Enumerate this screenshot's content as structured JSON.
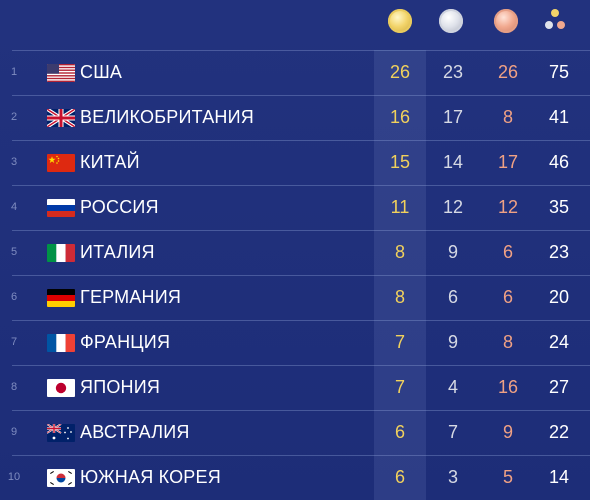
{
  "header": {
    "icons": [
      "gold-medal-icon",
      "silver-medal-icon",
      "bronze-medal-icon",
      "total-medals-icon"
    ],
    "colors": {
      "gold": "#f1d15c",
      "silver": "#d6d9e4",
      "bronze": "#f0a184",
      "total": "#ffffff",
      "background": "#1f2f7a"
    }
  },
  "rows": [
    {
      "rank": "1",
      "country": "США",
      "flag": "usa-flag-icon",
      "gold": "26",
      "silver": "23",
      "bronze": "26",
      "total": "75"
    },
    {
      "rank": "2",
      "country": "ВЕЛИКОБРИТАНИЯ",
      "flag": "uk-flag-icon",
      "gold": "16",
      "silver": "17",
      "bronze": "8",
      "total": "41"
    },
    {
      "rank": "3",
      "country": "КИТАЙ",
      "flag": "china-flag-icon",
      "gold": "15",
      "silver": "14",
      "bronze": "17",
      "total": "46"
    },
    {
      "rank": "4",
      "country": "РОССИЯ",
      "flag": "russia-flag-icon",
      "gold": "11",
      "silver": "12",
      "bronze": "12",
      "total": "35"
    },
    {
      "rank": "5",
      "country": "ИТАЛИЯ",
      "flag": "italy-flag-icon",
      "gold": "8",
      "silver": "9",
      "bronze": "6",
      "total": "23"
    },
    {
      "rank": "6",
      "country": "ГЕРМАНИЯ",
      "flag": "germany-flag-icon",
      "gold": "8",
      "silver": "6",
      "bronze": "6",
      "total": "20"
    },
    {
      "rank": "7",
      "country": "ФРАНЦИЯ",
      "flag": "france-flag-icon",
      "gold": "7",
      "silver": "9",
      "bronze": "8",
      "total": "24"
    },
    {
      "rank": "8",
      "country": "ЯПОНИЯ",
      "flag": "japan-flag-icon",
      "gold": "7",
      "silver": "4",
      "bronze": "16",
      "total": "27"
    },
    {
      "rank": "9",
      "country": "АВСТРАЛИЯ",
      "flag": "australia-flag-icon",
      "gold": "6",
      "silver": "7",
      "bronze": "9",
      "total": "22"
    },
    {
      "rank": "10",
      "country": "ЮЖНАЯ КОРЕЯ",
      "flag": "south-korea-flag-icon",
      "gold": "6",
      "silver": "3",
      "bronze": "5",
      "total": "14"
    }
  ]
}
